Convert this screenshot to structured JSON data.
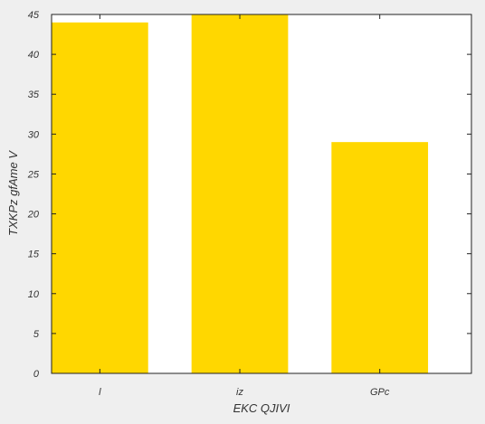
{
  "chart_data": {
    "type": "bar",
    "categories": [
      "l",
      "iz",
      "GPc"
    ],
    "values": [
      44,
      45,
      29
    ],
    "xlabel": "EKC  QJIVI",
    "ylabel": "TXKPz gfAme V",
    "ylim": [
      0,
      45
    ],
    "yticks": [
      0,
      5,
      10,
      15,
      20,
      25,
      30,
      35,
      40,
      45
    ],
    "bar_color": "#ffd700",
    "grid": false
  }
}
